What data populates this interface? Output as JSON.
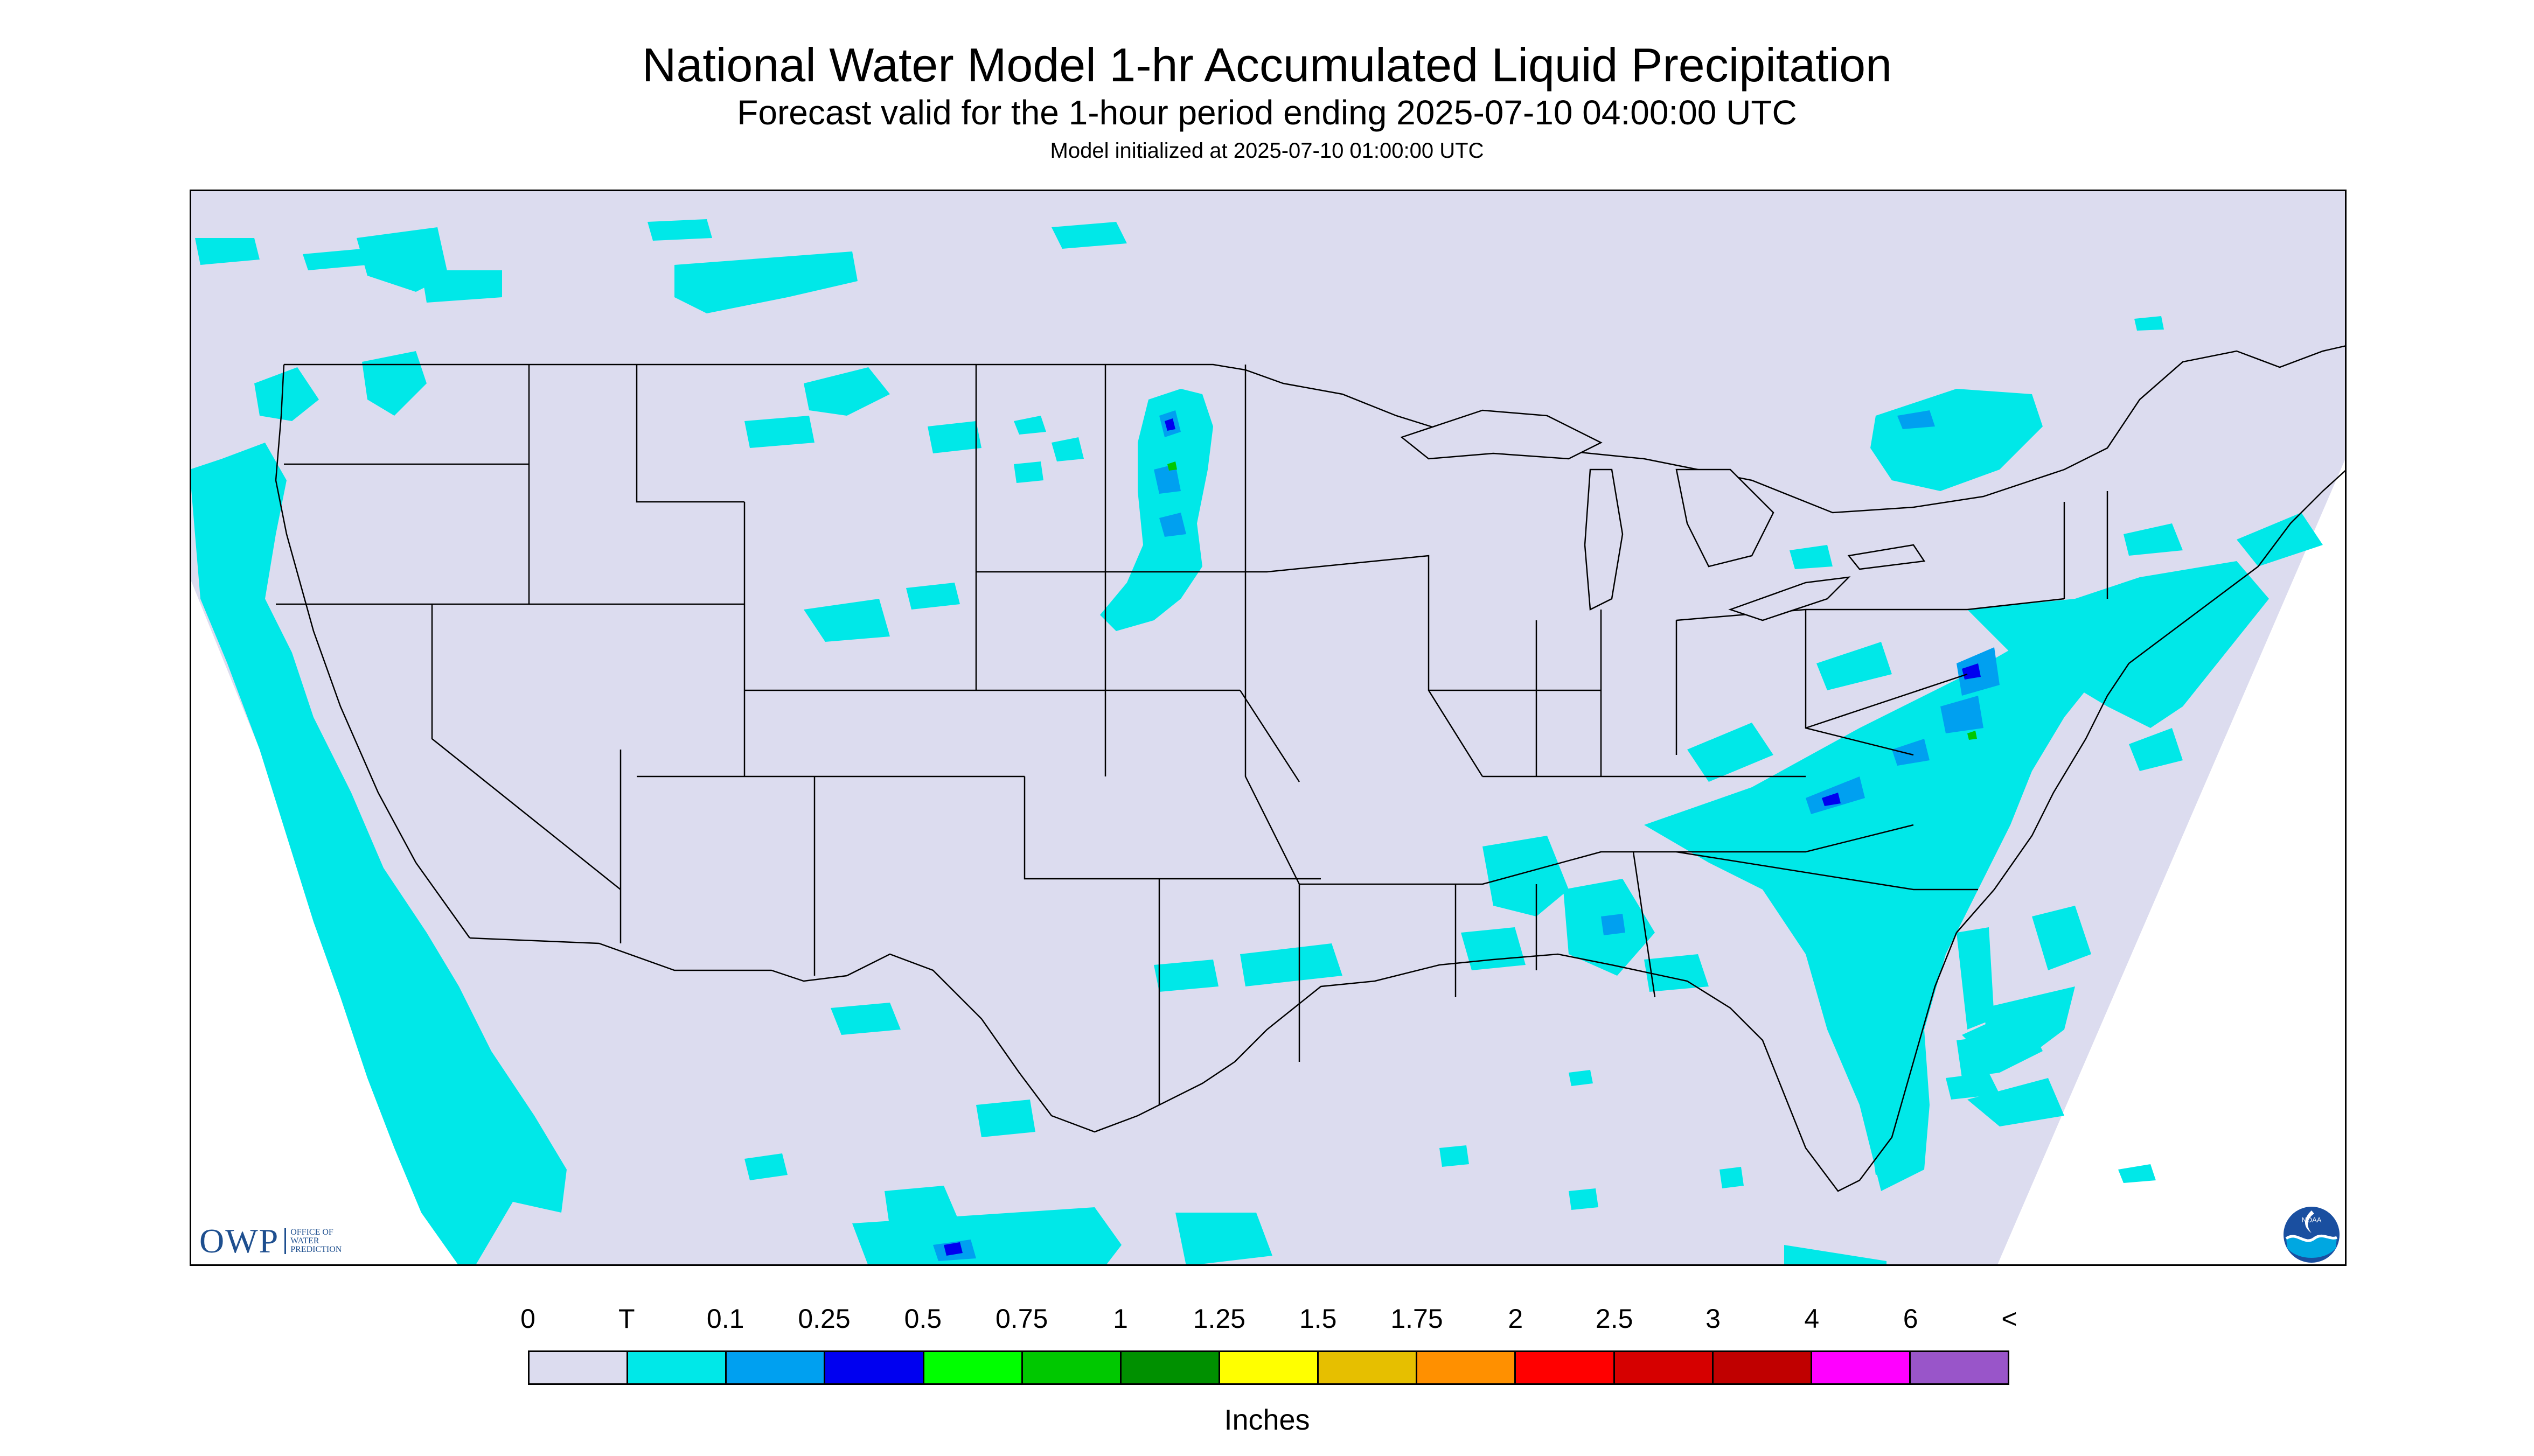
{
  "title": "National Water Model 1-hr Accumulated Liquid Precipitation",
  "subtitle": "Forecast valid for the 1-hour period ending 2025-07-10 04:00:00 UTC",
  "init_text": "Model initialized at 2025-07-10 01:00:00 UTC",
  "units": "Inches",
  "legend": {
    "labels": [
      "0",
      "T",
      "0.1",
      "0.25",
      "0.5",
      "0.75",
      "1",
      "1.25",
      "1.5",
      "1.75",
      "2",
      "2.5",
      "3",
      "4",
      "6",
      "<"
    ],
    "colors": [
      "#dcdcef",
      "#00e8e8",
      "#00a0f0",
      "#0000f0",
      "#00ff00",
      "#00c800",
      "#009000",
      "#ffff00",
      "#e6bf00",
      "#ff9000",
      "#ff0000",
      "#d60000",
      "#c00000",
      "#ff00ff",
      "#9955c9"
    ]
  },
  "map": {
    "background": "#dcdcef",
    "no_data": "#ffffff",
    "trace_color": "#00e8e8",
    "border_color": "#000000"
  },
  "logos": {
    "owp_mark": "OWP",
    "owp_lines": [
      "OFFICE OF",
      "WATER",
      "PREDICTION"
    ],
    "noaa_text": "NOAA",
    "noaa_icon": "noaa-logo-icon"
  }
}
